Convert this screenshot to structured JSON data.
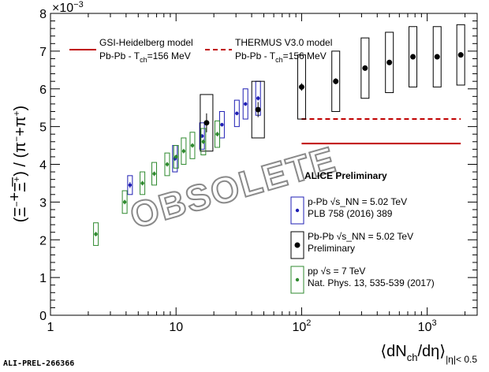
{
  "chart_data": {
    "type": "scatter",
    "x_scale": "log",
    "xlim": [
      1,
      2500
    ],
    "ylim": [
      0,
      8
    ],
    "y_multiplier": "×10⁻³",
    "grid": false,
    "xlabel": "⟨dN_ch/dη⟩ |η|< 0.5",
    "ylabel": "(Ξ⁻ + Ξ̅⁺) / (π⁻ + π⁺)",
    "x_ticks": [
      {
        "value": 1,
        "label": "1"
      },
      {
        "value": 10,
        "label": "10"
      },
      {
        "value": 100,
        "label": "10²"
      },
      {
        "value": 1000,
        "label": "10³"
      }
    ],
    "y_ticks": [
      0,
      1,
      2,
      3,
      4,
      5,
      6,
      7,
      8
    ],
    "series": [
      {
        "name": "p-Pb √s_NN = 5.02 TeV",
        "reference": "PLB 758 (2016) 389",
        "color": "#1f1fb4",
        "points": [
          {
            "x": 4.3,
            "y": 3.45,
            "err": 0.08,
            "sys": 0.25
          },
          {
            "x": 9.8,
            "y": 4.15,
            "err": 0.06,
            "sys": 0.35
          },
          {
            "x": 16.1,
            "y": 4.75,
            "err": 0.05,
            "sys": 0.35
          },
          {
            "x": 23.2,
            "y": 5.05,
            "err": 0.05,
            "sys": 0.35
          },
          {
            "x": 30.5,
            "y": 5.35,
            "err": 0.05,
            "sys": 0.35
          },
          {
            "x": 35.7,
            "y": 5.6,
            "err": 0.05,
            "sys": 0.4
          },
          {
            "x": 45.0,
            "y": 5.75,
            "err": 0.06,
            "sys": 0.45
          }
        ]
      },
      {
        "name": "Pb-Pb √s_NN = 5.02 TeV",
        "reference": "Preliminary",
        "color": "#000000",
        "points": [
          {
            "x": 17.5,
            "y": 5.1,
            "err": 0.25,
            "sys": 0.75
          },
          {
            "x": 45.0,
            "y": 5.45,
            "err": 0.2,
            "sys": 0.75
          },
          {
            "x": 100.0,
            "y": 6.05,
            "err": 0.1,
            "sys": 0.85
          },
          {
            "x": 187.0,
            "y": 6.2,
            "err": 0.08,
            "sys": 0.8
          },
          {
            "x": 320.0,
            "y": 6.55,
            "err": 0.07,
            "sys": 0.8
          },
          {
            "x": 500.0,
            "y": 6.7,
            "err": 0.07,
            "sys": 0.8
          },
          {
            "x": 770.0,
            "y": 6.85,
            "err": 0.07,
            "sys": 0.8
          },
          {
            "x": 1200.0,
            "y": 6.85,
            "err": 0.07,
            "sys": 0.8
          },
          {
            "x": 1850.0,
            "y": 6.9,
            "err": 0.07,
            "sys": 0.8
          }
        ]
      },
      {
        "name": "pp √s = 7 TeV",
        "reference": "Nat. Phys. 13, 535-539 (2017)",
        "color": "#2f8a2f",
        "points": [
          {
            "x": 2.3,
            "y": 2.15,
            "err": 0.06,
            "sys": 0.3
          },
          {
            "x": 3.9,
            "y": 3.0,
            "err": 0.06,
            "sys": 0.3
          },
          {
            "x": 5.4,
            "y": 3.5,
            "err": 0.06,
            "sys": 0.3
          },
          {
            "x": 6.7,
            "y": 3.75,
            "err": 0.06,
            "sys": 0.3
          },
          {
            "x": 8.5,
            "y": 4.0,
            "err": 0.06,
            "sys": 0.3
          },
          {
            "x": 10.0,
            "y": 4.2,
            "err": 0.06,
            "sys": 0.3
          },
          {
            "x": 11.5,
            "y": 4.35,
            "err": 0.06,
            "sys": 0.35
          },
          {
            "x": 13.5,
            "y": 4.5,
            "err": 0.06,
            "sys": 0.35
          },
          {
            "x": 16.5,
            "y": 4.6,
            "err": 0.06,
            "sys": 0.35
          },
          {
            "x": 21.3,
            "y": 4.8,
            "err": 0.06,
            "sys": 0.35
          }
        ]
      }
    ],
    "models": [
      {
        "name": "GSI-Heidelberg model",
        "subtitle": "Pb-Pb - T_ch=156 MeV",
        "style": "solid",
        "color": "#c00000",
        "y": 4.55,
        "x_range": [
          100,
          1850
        ]
      },
      {
        "name": "THERMUS V3.0 model",
        "subtitle": "Pb-Pb - T_ch=156 MeV",
        "style": "dashed",
        "color": "#c00000",
        "y": 5.2,
        "x_range": [
          100,
          1850
        ]
      }
    ],
    "annotations": {
      "preliminary": "ALICE Preliminary",
      "stamp": "OBSOLETE"
    }
  },
  "footer": "ALI-PREL-266366"
}
